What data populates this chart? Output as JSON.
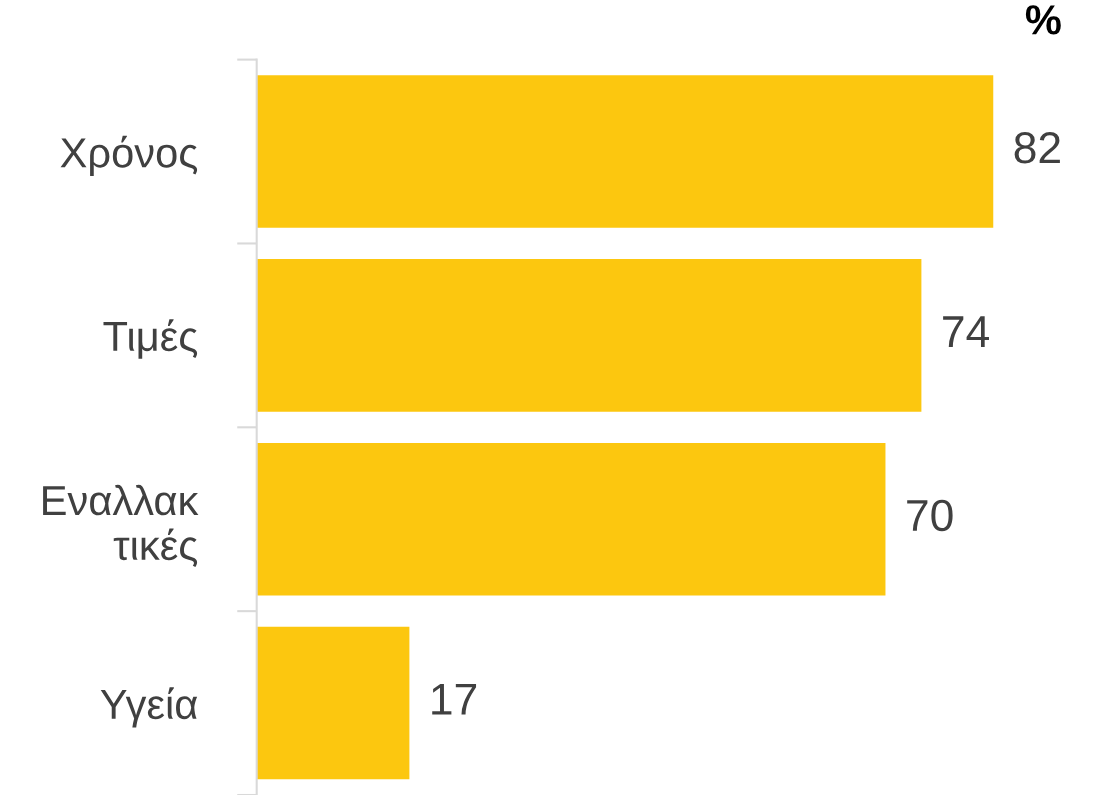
{
  "chart_data": {
    "type": "bar",
    "orientation": "horizontal",
    "categories": [
      "Χρόνος",
      "Τιμές",
      "Εναλλακ\nτικές",
      "Υγεία"
    ],
    "values": [
      82,
      74,
      70,
      17
    ],
    "color": "#fcc70f",
    "tick_labels": "y",
    "data_labels": true,
    "grid": false,
    "legend": false,
    "annotations": [
      "%"
    ]
  }
}
